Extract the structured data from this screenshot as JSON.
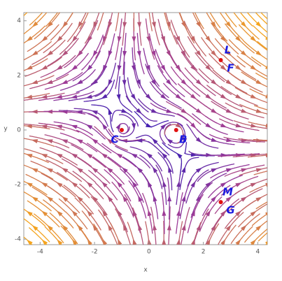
{
  "chart_data": {
    "type": "stream",
    "xlabel": "x",
    "ylabel": "y",
    "xlim": [
      -4.6,
      4.35
    ],
    "ylim": [
      -4.2,
      4.3
    ],
    "xticks": [
      -4,
      -2,
      0,
      2,
      4
    ],
    "yticks": [
      -4,
      -2,
      0,
      2,
      4
    ],
    "point_color": "#e01010",
    "label_color": "#1a1ae0",
    "points": [
      {
        "x": 1,
        "y": 0,
        "labels": [
          "B"
        ]
      },
      {
        "x": -1,
        "y": 0,
        "labels": [
          "C"
        ]
      },
      {
        "x": 2.64,
        "y": 2.56,
        "labels": [
          "L",
          "F"
        ]
      },
      {
        "x": 2.64,
        "y": -2.64,
        "labels": [
          "M",
          "G"
        ]
      }
    ]
  }
}
